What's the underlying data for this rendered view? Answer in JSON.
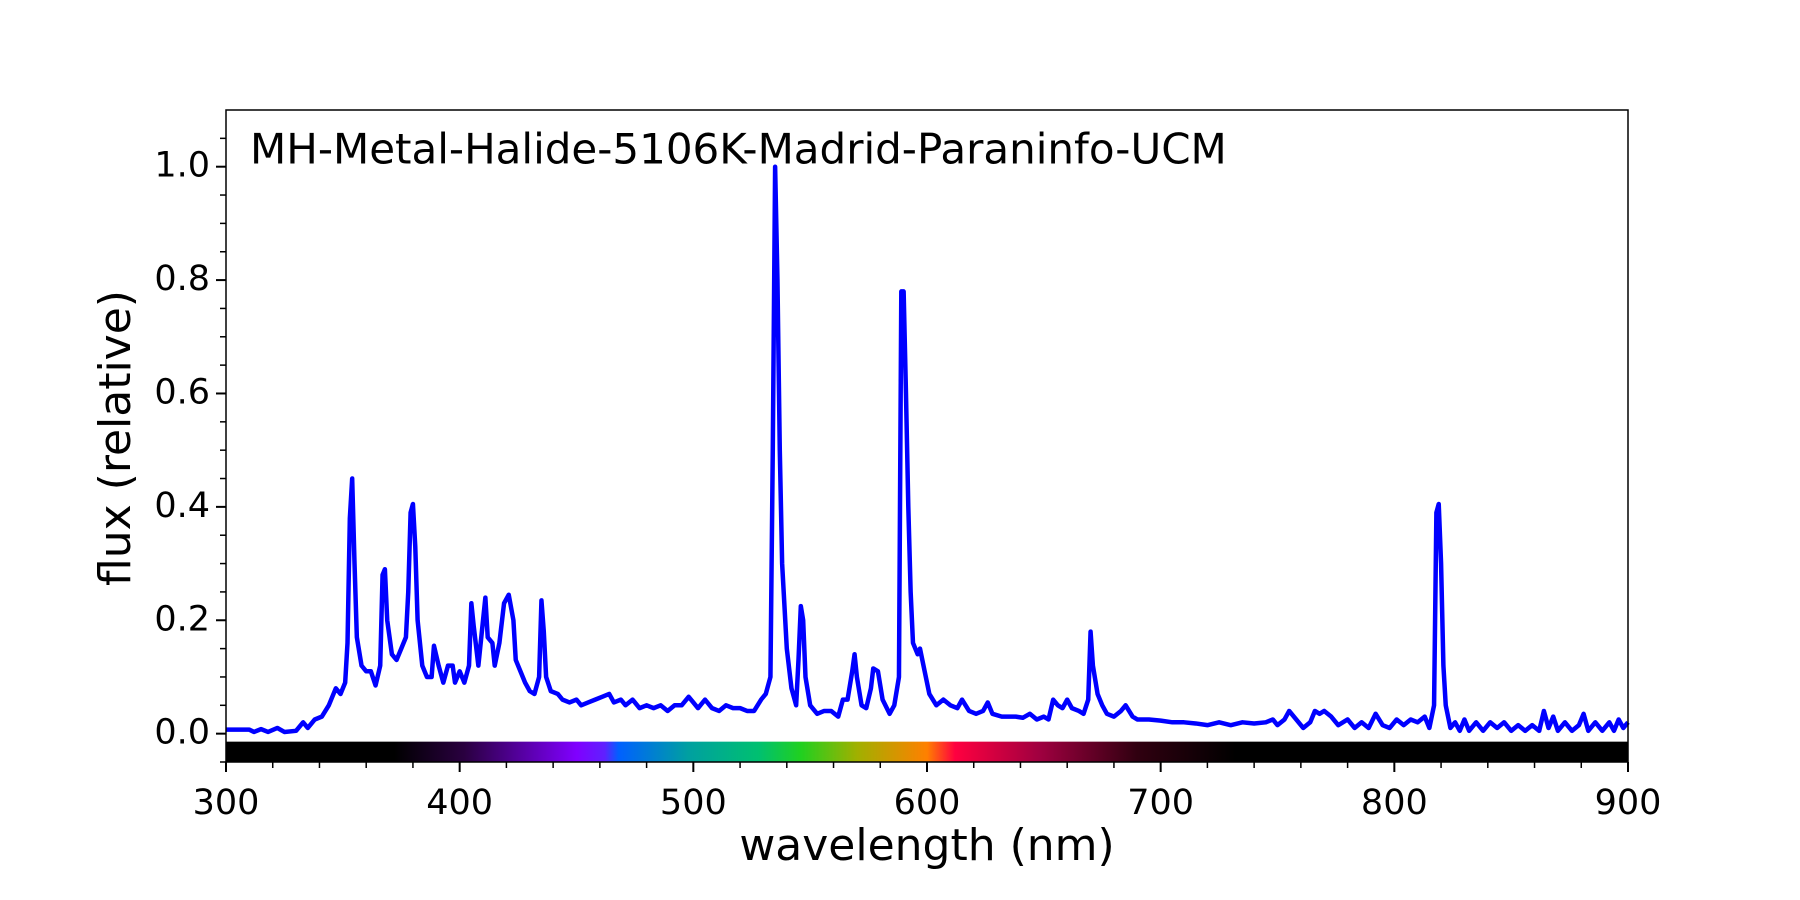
{
  "chart_data": {
    "type": "line",
    "title": "MH-Metal-Halide-5106K-Madrid-Paraninfo-UCM",
    "xlabel": "wavelength (nm)",
    "ylabel": "flux (relative)",
    "color": "#0000ff",
    "xlim": [
      300,
      900
    ],
    "ylim": [
      -0.05,
      1.1
    ],
    "xticks": [
      300,
      400,
      500,
      600,
      700,
      800,
      900
    ],
    "yticks": [
      {
        "value": 0,
        "label": "0.0"
      },
      {
        "value": 0.2,
        "label": "0.2"
      },
      {
        "value": 0.4,
        "label": "0.4"
      },
      {
        "value": 0.6,
        "label": "0.6"
      },
      {
        "value": 0.8,
        "label": "0.8"
      },
      {
        "value": 1.0,
        "label": "1.0"
      }
    ],
    "xminorticks": [
      320,
      340,
      360,
      380,
      420,
      440,
      460,
      480,
      520,
      540,
      560,
      580,
      620,
      640,
      660,
      680,
      720,
      740,
      760,
      780,
      820,
      840,
      860,
      880
    ],
    "yminorticks": [
      -0.05,
      0.05,
      0.1,
      0.15,
      0.25,
      0.3,
      0.35,
      0.45,
      0.5,
      0.55,
      0.65,
      0.7,
      0.75,
      0.85,
      0.9,
      0.95,
      1.05
    ],
    "x": [
      300,
      310,
      312,
      315,
      318,
      322,
      325,
      330,
      333,
      335,
      338,
      341,
      344,
      347,
      349,
      351,
      352,
      353,
      354,
      355,
      356,
      358,
      360,
      362,
      364,
      366,
      367,
      368,
      369,
      371,
      373,
      375,
      377,
      378,
      379,
      380,
      381,
      382,
      384,
      386,
      388,
      389,
      391,
      393,
      395,
      397,
      398,
      400,
      402,
      404,
      405,
      406,
      408,
      410,
      411,
      412,
      414,
      415,
      417,
      419,
      421,
      423,
      424,
      426,
      428,
      430,
      432,
      434,
      435,
      436,
      437,
      439,
      442,
      444,
      447,
      450,
      452,
      455,
      458,
      461,
      464,
      466,
      469,
      471,
      474,
      477,
      480,
      483,
      486,
      489,
      492,
      495,
      498,
      500,
      502,
      505,
      508,
      511,
      514,
      517,
      520,
      523,
      526,
      529,
      531,
      533,
      534,
      535,
      536,
      537,
      538,
      540,
      542,
      544,
      545,
      546,
      547,
      548,
      550,
      553,
      556,
      559,
      562,
      564,
      566,
      568,
      569,
      570,
      572,
      574,
      576,
      577,
      579,
      581,
      584,
      586,
      588,
      589,
      590,
      591,
      592,
      593,
      594,
      596,
      597,
      599,
      601,
      604,
      607,
      610,
      613,
      615,
      618,
      621,
      624,
      626,
      628,
      632,
      635,
      638,
      641,
      644,
      647,
      650,
      652,
      654,
      656,
      658,
      660,
      662,
      665,
      667,
      669,
      670,
      671,
      673,
      675,
      677,
      680,
      683,
      685,
      688,
      690,
      695,
      700,
      705,
      710,
      715,
      720,
      725,
      730,
      735,
      740,
      745,
      748,
      750,
      753,
      755,
      758,
      761,
      764,
      766,
      768,
      770,
      773,
      776,
      780,
      783,
      786,
      789,
      792,
      795,
      798,
      801,
      804,
      807,
      810,
      813,
      815,
      817,
      818,
      819,
      820,
      821,
      822,
      824,
      826,
      828,
      830,
      832,
      835,
      838,
      841,
      844,
      847,
      850,
      853,
      856,
      859,
      862,
      864,
      866,
      868,
      870,
      873,
      876,
      879,
      881,
      883,
      886,
      889,
      892,
      894,
      896,
      898,
      900
    ],
    "values": [
      0.007,
      0.007,
      0.003,
      0.008,
      0.003,
      0.01,
      0.003,
      0.005,
      0.02,
      0.01,
      0.025,
      0.03,
      0.05,
      0.08,
      0.07,
      0.09,
      0.16,
      0.38,
      0.45,
      0.3,
      0.17,
      0.12,
      0.11,
      0.11,
      0.085,
      0.12,
      0.28,
      0.29,
      0.2,
      0.14,
      0.13,
      0.15,
      0.17,
      0.25,
      0.39,
      0.405,
      0.33,
      0.2,
      0.12,
      0.1,
      0.1,
      0.155,
      0.12,
      0.09,
      0.12,
      0.12,
      0.09,
      0.11,
      0.09,
      0.12,
      0.23,
      0.19,
      0.12,
      0.2,
      0.24,
      0.17,
      0.16,
      0.12,
      0.16,
      0.23,
      0.245,
      0.2,
      0.13,
      0.11,
      0.09,
      0.075,
      0.07,
      0.1,
      0.235,
      0.18,
      0.1,
      0.075,
      0.07,
      0.06,
      0.055,
      0.06,
      0.05,
      0.055,
      0.06,
      0.065,
      0.07,
      0.055,
      0.06,
      0.05,
      0.06,
      0.045,
      0.05,
      0.045,
      0.05,
      0.04,
      0.05,
      0.05,
      0.065,
      0.055,
      0.045,
      0.06,
      0.045,
      0.04,
      0.05,
      0.045,
      0.045,
      0.04,
      0.04,
      0.06,
      0.07,
      0.1,
      0.5,
      1.0,
      0.8,
      0.5,
      0.3,
      0.15,
      0.08,
      0.05,
      0.13,
      0.225,
      0.2,
      0.1,
      0.05,
      0.035,
      0.04,
      0.04,
      0.03,
      0.06,
      0.06,
      0.11,
      0.14,
      0.1,
      0.05,
      0.045,
      0.08,
      0.115,
      0.11,
      0.06,
      0.035,
      0.05,
      0.1,
      0.78,
      0.78,
      0.6,
      0.4,
      0.25,
      0.16,
      0.14,
      0.15,
      0.11,
      0.07,
      0.05,
      0.06,
      0.05,
      0.045,
      0.06,
      0.04,
      0.035,
      0.04,
      0.055,
      0.035,
      0.03,
      0.03,
      0.03,
      0.028,
      0.035,
      0.025,
      0.03,
      0.025,
      0.06,
      0.05,
      0.045,
      0.06,
      0.045,
      0.04,
      0.035,
      0.06,
      0.18,
      0.12,
      0.07,
      0.05,
      0.035,
      0.03,
      0.04,
      0.05,
      0.03,
      0.025,
      0.025,
      0.023,
      0.02,
      0.02,
      0.018,
      0.015,
      0.02,
      0.015,
      0.02,
      0.018,
      0.02,
      0.025,
      0.015,
      0.025,
      0.04,
      0.025,
      0.01,
      0.02,
      0.04,
      0.035,
      0.04,
      0.03,
      0.015,
      0.025,
      0.01,
      0.02,
      0.01,
      0.035,
      0.015,
      0.01,
      0.025,
      0.015,
      0.025,
      0.02,
      0.03,
      0.01,
      0.05,
      0.39,
      0.405,
      0.3,
      0.12,
      0.05,
      0.01,
      0.02,
      0.005,
      0.025,
      0.005,
      0.02,
      0.005,
      0.02,
      0.01,
      0.02,
      0.005,
      0.015,
      0.005,
      0.015,
      0.005,
      0.04,
      0.01,
      0.03,
      0.005,
      0.02,
      0.005,
      0.015,
      0.035,
      0.005,
      0.02,
      0.005,
      0.02,
      0.005,
      0.025,
      0.01,
      0.02
    ]
  }
}
